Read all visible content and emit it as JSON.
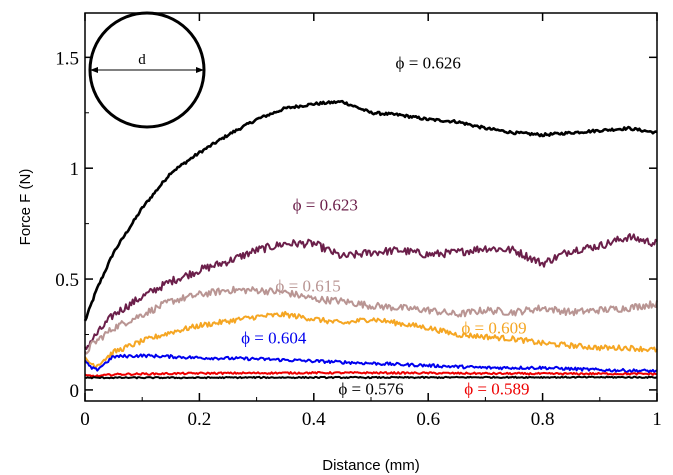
{
  "chart_data": {
    "type": "line",
    "xlabel": "Distance (mm)",
    "ylabel": "Force F (N)",
    "xlim": [
      0,
      1
    ],
    "ylim": [
      -0.05,
      1.7
    ],
    "x_ticks": [
      0,
      0.2,
      0.4,
      0.6,
      0.8,
      1
    ],
    "x_tick_labels": [
      "0",
      "0.2",
      "0.4",
      "0.6",
      "0.8",
      "1"
    ],
    "y_ticks": [
      0,
      0.5,
      1,
      1.5
    ],
    "y_tick_labels": [
      "0",
      "0.5",
      "1",
      "1.5"
    ],
    "grid": false,
    "inset": {
      "shape": "circle",
      "label": "d"
    },
    "series": [
      {
        "label": "ϕ = 0.626",
        "color": "#000000",
        "noise": 0.006,
        "x": [
          0,
          0.02,
          0.05,
          0.1,
          0.15,
          0.2,
          0.25,
          0.3,
          0.35,
          0.4,
          0.45,
          0.5,
          0.55,
          0.6,
          0.65,
          0.7,
          0.75,
          0.8,
          0.85,
          0.9,
          0.95,
          1.0
        ],
        "y": [
          0.31,
          0.45,
          0.62,
          0.82,
          0.98,
          1.07,
          1.15,
          1.22,
          1.27,
          1.29,
          1.3,
          1.25,
          1.24,
          1.22,
          1.21,
          1.18,
          1.16,
          1.15,
          1.16,
          1.17,
          1.18,
          1.16
        ]
      },
      {
        "label": "ϕ = 0.623",
        "color": "#6b1f4a",
        "noise": 0.018,
        "x": [
          0,
          0.01,
          0.05,
          0.1,
          0.15,
          0.2,
          0.25,
          0.3,
          0.35,
          0.4,
          0.45,
          0.5,
          0.55,
          0.6,
          0.65,
          0.7,
          0.75,
          0.8,
          0.85,
          0.9,
          0.95,
          1.0
        ],
        "y": [
          0.18,
          0.22,
          0.34,
          0.42,
          0.49,
          0.54,
          0.58,
          0.63,
          0.66,
          0.66,
          0.6,
          0.62,
          0.63,
          0.61,
          0.62,
          0.64,
          0.63,
          0.57,
          0.63,
          0.65,
          0.69,
          0.66
        ]
      },
      {
        "label": "ϕ = 0.615",
        "color": "#b99593",
        "noise": 0.016,
        "x": [
          0,
          0.01,
          0.05,
          0.1,
          0.15,
          0.2,
          0.25,
          0.3,
          0.35,
          0.4,
          0.45,
          0.5,
          0.55,
          0.6,
          0.65,
          0.7,
          0.75,
          0.8,
          0.85,
          0.9,
          0.95,
          1.0
        ],
        "y": [
          0.16,
          0.2,
          0.28,
          0.34,
          0.4,
          0.43,
          0.45,
          0.45,
          0.44,
          0.41,
          0.4,
          0.38,
          0.37,
          0.36,
          0.34,
          0.36,
          0.35,
          0.37,
          0.35,
          0.36,
          0.37,
          0.39
        ]
      },
      {
        "label": "ϕ = 0.609",
        "color": "#f5a623",
        "noise": 0.012,
        "x": [
          0,
          0.01,
          0.02,
          0.05,
          0.1,
          0.15,
          0.2,
          0.25,
          0.3,
          0.35,
          0.4,
          0.45,
          0.5,
          0.55,
          0.6,
          0.65,
          0.7,
          0.75,
          0.8,
          0.85,
          0.9,
          0.95,
          1.0
        ],
        "y": [
          0.14,
          0.12,
          0.11,
          0.17,
          0.22,
          0.26,
          0.29,
          0.31,
          0.33,
          0.34,
          0.32,
          0.3,
          0.32,
          0.3,
          0.28,
          0.25,
          0.24,
          0.23,
          0.21,
          0.2,
          0.19,
          0.19,
          0.18
        ]
      },
      {
        "label": "ϕ = 0.604",
        "color": "#0000ee",
        "noise": 0.007,
        "x": [
          0,
          0.01,
          0.02,
          0.05,
          0.1,
          0.15,
          0.2,
          0.3,
          0.4,
          0.5,
          0.6,
          0.7,
          0.8,
          0.9,
          1.0
        ],
        "y": [
          0.13,
          0.1,
          0.09,
          0.15,
          0.155,
          0.15,
          0.145,
          0.14,
          0.13,
          0.12,
          0.11,
          0.1,
          0.1,
          0.09,
          0.085
        ]
      },
      {
        "label": "ϕ = 0.589",
        "color": "#ee0000",
        "noise": 0.004,
        "x": [
          0,
          0.02,
          0.05,
          0.1,
          0.2,
          0.3,
          0.4,
          0.5,
          0.6,
          0.7,
          0.8,
          0.9,
          1.0
        ],
        "y": [
          0.065,
          0.062,
          0.07,
          0.072,
          0.075,
          0.076,
          0.077,
          0.077,
          0.076,
          0.074,
          0.073,
          0.073,
          0.072
        ]
      },
      {
        "label": "ϕ = 0.576",
        "color": "#000000",
        "noise": 0.003,
        "x": [
          0,
          0.1,
          0.2,
          0.3,
          0.4,
          0.5,
          0.6,
          0.7,
          0.8,
          0.9,
          1.0
        ],
        "y": [
          0.055,
          0.055,
          0.055,
          0.056,
          0.056,
          0.056,
          0.056,
          0.057,
          0.057,
          0.057,
          0.057
        ]
      }
    ]
  },
  "annotations": [
    {
      "series": 0,
      "text": "ϕ = 0.626",
      "color": "#000000",
      "at": [
        0.6,
        1.45
      ]
    },
    {
      "series": 1,
      "text": "ϕ = 0.623",
      "color": "#6b1f4a",
      "at": [
        0.42,
        0.81
      ]
    },
    {
      "series": 2,
      "text": "ϕ = 0.615",
      "color": "#b99593",
      "at": [
        0.39,
        0.445
      ]
    },
    {
      "series": 3,
      "text": "ϕ = 0.609",
      "color": "#f5a623",
      "at": [
        0.715,
        0.255
      ]
    },
    {
      "series": 4,
      "text": "ϕ = 0.604",
      "color": "#0000ee",
      "at": [
        0.33,
        0.21
      ]
    },
    {
      "series": 6,
      "text": "ϕ = 0.576",
      "color": "#000000",
      "at": [
        0.5,
        -0.02
      ]
    },
    {
      "series": 5,
      "text": "ϕ = 0.589",
      "color": "#ee0000",
      "at": [
        0.72,
        -0.02
      ]
    }
  ]
}
